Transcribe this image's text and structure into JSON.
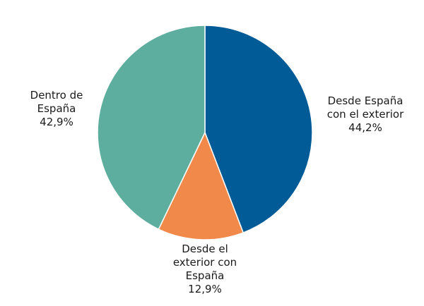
{
  "chart_data": {
    "type": "pie",
    "title": "",
    "slices": [
      {
        "label_lines": [
          "Desde España",
          "con el exterior"
        ],
        "value": 44.2,
        "value_label": "44,2%",
        "color": "#005b96"
      },
      {
        "label_lines": [
          "Desde el",
          "exterior con",
          "España"
        ],
        "value": 12.9,
        "value_label": "12,9%",
        "color": "#f1894b"
      },
      {
        "label_lines": [
          "Dentro de",
          "España"
        ],
        "value": 42.9,
        "value_label": "42,9%",
        "color": "#5dae9e"
      }
    ]
  }
}
